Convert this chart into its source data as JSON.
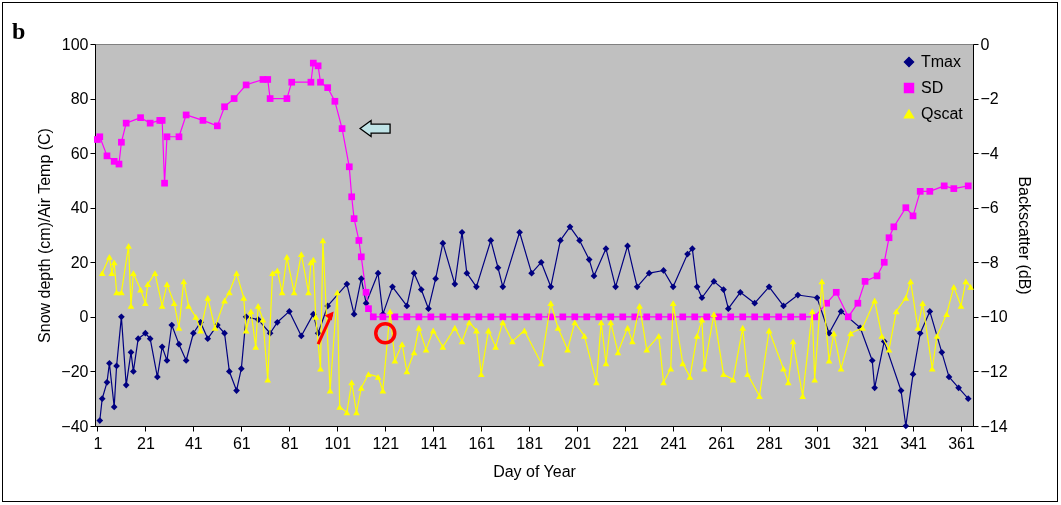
{
  "chart_data": {
    "type": "line",
    "xlabel": "Day of Year",
    "ylabel": "Snow depth (cm)/Air Temp (C)",
    "y2label": "Backscatter (dB)",
    "annotations": [
      "b"
    ],
    "xlim": [
      0,
      366
    ],
    "xticks": [
      1,
      21,
      41,
      61,
      81,
      101,
      121,
      141,
      161,
      181,
      201,
      221,
      241,
      261,
      281,
      301,
      321,
      341,
      361
    ],
    "ylim": [
      -40,
      100
    ],
    "yticks": [
      -40,
      -20,
      0,
      20,
      40,
      60,
      80,
      100
    ],
    "y2lim": [
      -14,
      0
    ],
    "y2ticks": [
      -14,
      -12,
      -10,
      -8,
      -6,
      -4,
      -2,
      0
    ],
    "grid": false,
    "legend": "top right",
    "series": [
      {
        "name": "Tmax",
        "color": "#000080",
        "marker": "diamond",
        "x": [
          2,
          3,
          5,
          6,
          8,
          9,
          11,
          13,
          15,
          16,
          18,
          21,
          23,
          26,
          28,
          30,
          32,
          35,
          38,
          41,
          44,
          47,
          51,
          54,
          56,
          59,
          61,
          63,
          68,
          73,
          76,
          81,
          86,
          91,
          93,
          97,
          105,
          108,
          111,
          113,
          118,
          120,
          124,
          130,
          133,
          136,
          139,
          142,
          145,
          150,
          153,
          155,
          159,
          165,
          168,
          170,
          177,
          182,
          186,
          190,
          194,
          198,
          202,
          206,
          208,
          213,
          217,
          222,
          226,
          231,
          237,
          241,
          247,
          249,
          251,
          253,
          258,
          262,
          264,
          269,
          275,
          281,
          287,
          293,
          301,
          306,
          311,
          319,
          324,
          325,
          329,
          336,
          338,
          341,
          344,
          348,
          353,
          356,
          360,
          364
        ],
        "values": [
          -38,
          -30,
          -24,
          -17,
          -33,
          -18,
          0,
          -25,
          -13,
          -20,
          -8,
          -6,
          -8,
          -22,
          -11,
          -16,
          -3,
          -10,
          -16,
          -6,
          -2,
          -8,
          -3,
          -6,
          -20,
          -27,
          -19,
          0,
          -1,
          -6,
          -2,
          2,
          -7,
          1,
          -6,
          4,
          12,
          1,
          14,
          5,
          16,
          1,
          11,
          4,
          16,
          10,
          3,
          14,
          27,
          12,
          31,
          16,
          11,
          28,
          18,
          11,
          31,
          16,
          20,
          11,
          28,
          33,
          28,
          21,
          15,
          25,
          11,
          26,
          11,
          16,
          17,
          11,
          23,
          25,
          11,
          7,
          13,
          10,
          3,
          9,
          5,
          11,
          4,
          8,
          7,
          -6,
          2,
          -4,
          -16,
          -26,
          -9,
          -27,
          -40,
          -21,
          -6,
          2,
          -13,
          -22,
          -26,
          -30
        ]
      },
      {
        "name": "SD",
        "color": "#ff00ff",
        "marker": "square",
        "x": [
          1,
          2,
          5,
          8,
          10,
          11,
          13,
          19,
          23,
          27,
          28,
          29,
          30,
          35,
          38,
          45,
          51,
          54,
          58,
          63,
          70,
          72,
          73,
          80,
          82,
          90,
          91,
          93,
          94,
          97,
          100,
          103,
          106,
          107,
          108,
          110,
          111,
          113,
          114,
          116,
          120,
          125,
          130,
          135,
          140,
          145,
          150,
          155,
          160,
          165,
          170,
          175,
          180,
          185,
          190,
          195,
          200,
          205,
          210,
          215,
          220,
          225,
          230,
          235,
          240,
          245,
          250,
          255,
          260,
          265,
          270,
          275,
          280,
          285,
          290,
          295,
          300,
          305,
          309,
          314,
          318,
          321,
          326,
          329,
          331,
          333,
          338,
          341,
          344,
          348,
          354,
          358,
          364
        ],
        "values": [
          65,
          66,
          59,
          57,
          56,
          64,
          71,
          73,
          71,
          72,
          72,
          49,
          66,
          66,
          74,
          72,
          70,
          77,
          80,
          85,
          87,
          87,
          80,
          80,
          86,
          86,
          93,
          92,
          86,
          84,
          79,
          69,
          55,
          44,
          36,
          28,
          22,
          9,
          3,
          0,
          0,
          0,
          0,
          0,
          0,
          0,
          0,
          0,
          0,
          0,
          0,
          0,
          0,
          0,
          0,
          0,
          0,
          0,
          0,
          0,
          0,
          0,
          0,
          0,
          0,
          0,
          0,
          0,
          0,
          0,
          0,
          0,
          0,
          0,
          0,
          0,
          0,
          5,
          9,
          0,
          5,
          13,
          15,
          20,
          29,
          33,
          40,
          37,
          46,
          46,
          48,
          47,
          48
        ]
      },
      {
        "name": "Qscat",
        "color": "#ffff00",
        "marker": "triangle",
        "axis": "y2",
        "x": [
          3,
          6,
          7,
          8,
          9,
          11,
          14,
          15,
          16,
          19,
          21,
          22,
          25,
          28,
          30,
          33,
          35,
          37,
          39,
          42,
          44,
          47,
          50,
          54,
          56,
          59,
          62,
          63,
          65,
          67,
          68,
          70,
          72,
          74,
          76,
          78,
          80,
          83,
          86,
          89,
          90,
          91,
          92,
          94,
          95,
          98,
          101,
          102,
          105,
          107,
          109,
          111,
          114,
          118,
          120,
          123,
          125,
          128,
          130,
          133,
          135,
          138,
          141,
          145,
          150,
          153,
          156,
          159,
          161,
          164,
          167,
          170,
          174,
          179,
          186,
          190,
          193,
          197,
          200,
          204,
          209,
          211,
          213,
          215,
          218,
          222,
          224,
          227,
          230,
          235,
          237,
          240,
          241,
          245,
          248,
          251,
          253,
          254,
          258,
          262,
          266,
          270,
          272,
          277,
          281,
          287,
          289,
          291,
          295,
          299,
          300,
          303,
          306,
          308,
          311,
          315,
          320,
          325,
          328,
          331,
          334,
          338,
          340,
          343,
          345,
          349,
          351,
          355,
          358,
          361,
          363,
          365
        ],
        "values": [
          -8.4,
          -7.8,
          -8.4,
          -8.0,
          -9.1,
          -9.1,
          -7.4,
          -9.6,
          -8.4,
          -9.0,
          -9.5,
          -8.8,
          -8.4,
          -9.6,
          -8.8,
          -9.5,
          -10.4,
          -8.7,
          -9.6,
          -10.0,
          -10.5,
          -9.3,
          -10.4,
          -9.4,
          -9.1,
          -8.4,
          -9.3,
          -10.5,
          -9.8,
          -11.1,
          -9.6,
          -10.1,
          -12.3,
          -8.4,
          -8.3,
          -9.1,
          -7.8,
          -9.1,
          -7.7,
          -9.1,
          -8.0,
          -7.9,
          -10.0,
          -11.9,
          -7.2,
          -12.7,
          -9.1,
          -13.3,
          -13.5,
          -12.4,
          -13.5,
          -12.6,
          -12.1,
          -12.2,
          -12.7,
          -9.8,
          -11.6,
          -11.0,
          -12.0,
          -11.3,
          -10.4,
          -11.2,
          -10.5,
          -11.1,
          -10.4,
          -10.9,
          -10.2,
          -10.5,
          -12.1,
          -10.5,
          -11.1,
          -10.2,
          -10.9,
          -10.5,
          -11.7,
          -9.5,
          -10.4,
          -11.2,
          -10.2,
          -10.7,
          -12.4,
          -10.2,
          -11.7,
          -10.2,
          -11.3,
          -10.4,
          -10.9,
          -9.6,
          -11.2,
          -10.7,
          -12.4,
          -11.9,
          -9.5,
          -11.7,
          -12.2,
          -10.7,
          -10.1,
          -11.9,
          -9.9,
          -12.1,
          -12.3,
          -10.4,
          -12.1,
          -12.9,
          -10.5,
          -11.9,
          -12.4,
          -10.9,
          -12.9,
          -9.8,
          -12.3,
          -8.7,
          -11.6,
          -10.6,
          -11.9,
          -10.6,
          -10.4,
          -9.4,
          -10.7,
          -11.2,
          -9.8,
          -9.3,
          -8.7,
          -10.4,
          -9.5,
          -11.9,
          -10.7,
          -9.9,
          -8.9,
          -9.6,
          -8.7,
          -8.9
        ]
      }
    ]
  }
}
